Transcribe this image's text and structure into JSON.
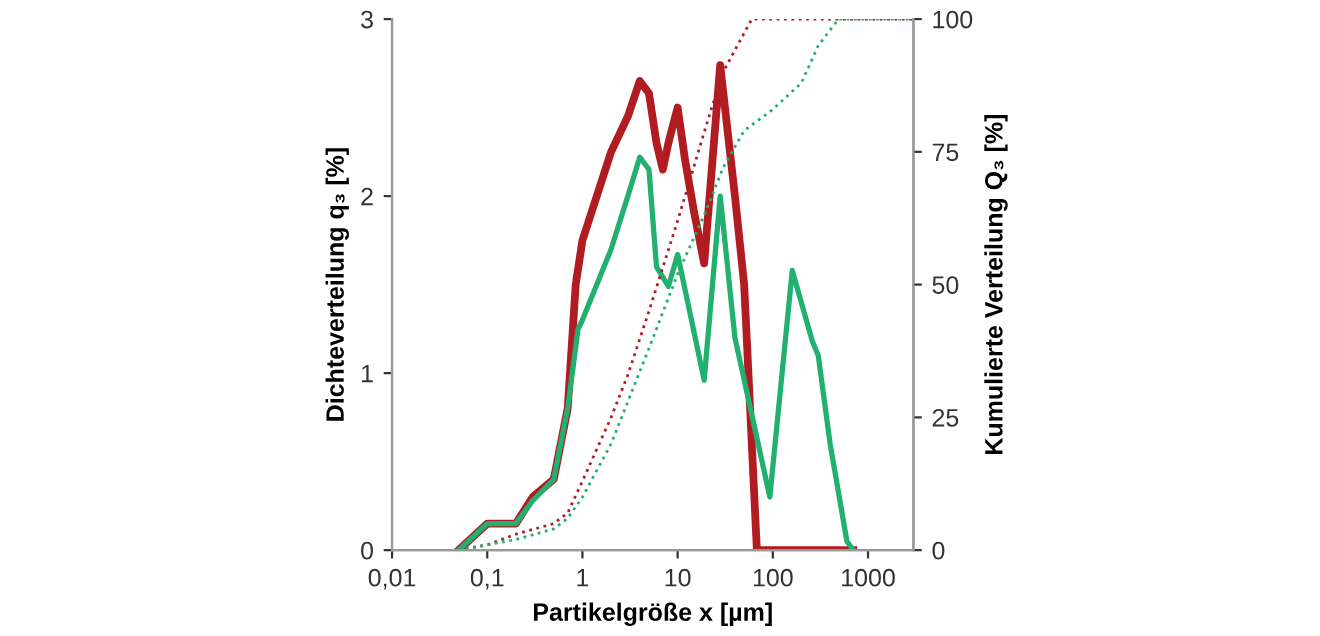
{
  "chart_data": {
    "type": "line",
    "xlabel": "Partikelgröße x [µm]",
    "ylabel": "Dichteverteilung q₃ [%]",
    "y2label": "Kumulierte Verteilung Q₃ [%]",
    "log": "x",
    "grid": false,
    "legend": false,
    "marker": "none",
    "xlim": [
      0.01,
      3000
    ],
    "xticks": [
      {
        "value": 0.01,
        "label": "0,01"
      },
      {
        "value": 0.1,
        "label": "0,1"
      },
      1,
      10,
      100,
      1000
    ],
    "ylim": [
      0,
      3
    ],
    "yticks": [
      0,
      1,
      2,
      3
    ],
    "y2lim": [
      0,
      100
    ],
    "y2ticks": [
      0,
      25,
      50,
      75,
      100
    ],
    "series": [
      {
        "color": "#b01c22",
        "line_style": "solid",
        "x": [
          0.05,
          0.1,
          0.2,
          0.3,
          0.5,
          0.7,
          0.85,
          1,
          2,
          3,
          4,
          5,
          6,
          7,
          8,
          10,
          12,
          15,
          19,
          28,
          40,
          50,
          68,
          700
        ],
        "values": [
          0,
          0.15,
          0.15,
          0.3,
          0.4,
          0.8,
          1.5,
          1.75,
          2.25,
          2.45,
          2.65,
          2.58,
          2.3,
          2.15,
          2.3,
          2.5,
          2.2,
          1.9,
          1.62,
          2.74,
          2.0,
          1.5,
          0,
          0
        ]
      },
      {
        "color": "#22b070",
        "line_style": "solid",
        "x": [
          0.05,
          0.1,
          0.2,
          0.3,
          0.5,
          0.7,
          0.9,
          1,
          2,
          3,
          4,
          5,
          6,
          8,
          10,
          19,
          28,
          40,
          93,
          160,
          260,
          300,
          400,
          600,
          700
        ],
        "values": [
          0,
          0.15,
          0.15,
          0.28,
          0.4,
          0.8,
          1.25,
          1.3,
          1.7,
          2.0,
          2.22,
          2.15,
          1.6,
          1.49,
          1.67,
          0.96,
          2.0,
          1.2,
          0.3,
          1.58,
          1.18,
          1.1,
          0.6,
          0.05,
          0
        ]
      },
      {
        "color": "#b01c22",
        "line_style": "dotted",
        "axis": "y2",
        "x": [
          0.05,
          0.1,
          0.2,
          0.5,
          0.7,
          1,
          2,
          3,
          5,
          10,
          20,
          30,
          60,
          3000
        ],
        "values": [
          0,
          1,
          3,
          5,
          7,
          13,
          25,
          33,
          45,
          62,
          80,
          90,
          100,
          100
        ]
      },
      {
        "color": "#22b070",
        "line_style": "dotted",
        "axis": "y2",
        "x": [
          0.05,
          0.1,
          0.2,
          0.5,
          0.7,
          1,
          2,
          5,
          10,
          20,
          30,
          50,
          100,
          200,
          300,
          490,
          3000
        ],
        "values": [
          0,
          1,
          2,
          4,
          6,
          10,
          20,
          38,
          52,
          64,
          72,
          79,
          83,
          88,
          95,
          100,
          100
        ]
      }
    ]
  }
}
